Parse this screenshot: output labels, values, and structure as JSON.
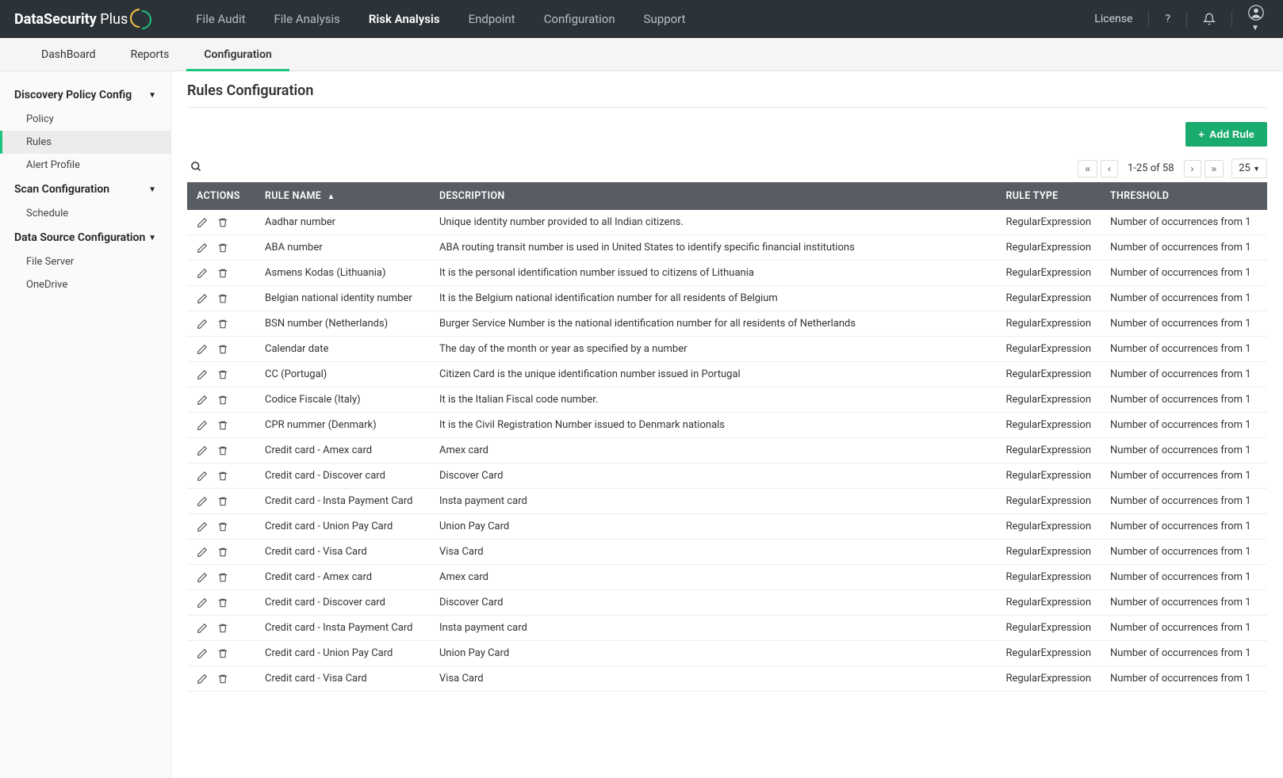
{
  "brand": {
    "prefix": "DataSecurity",
    "suffix": " Plus"
  },
  "topnav": {
    "items": [
      {
        "label": "File Audit"
      },
      {
        "label": "File Analysis"
      },
      {
        "label": "Risk Analysis",
        "active": true
      },
      {
        "label": "Endpoint"
      },
      {
        "label": "Configuration"
      },
      {
        "label": "Support"
      }
    ],
    "license": "License",
    "help": "?"
  },
  "subnav": {
    "items": [
      {
        "label": "DashBoard"
      },
      {
        "label": "Reports"
      },
      {
        "label": "Configuration",
        "active": true
      }
    ]
  },
  "sidebar": {
    "sections": [
      {
        "title": "Discovery Policy Config",
        "items": [
          {
            "label": "Policy"
          },
          {
            "label": "Rules",
            "active": true
          },
          {
            "label": "Alert Profile"
          }
        ]
      },
      {
        "title": "Scan Configuration",
        "items": [
          {
            "label": "Schedule"
          }
        ]
      },
      {
        "title": "Data Source Configuration",
        "items": [
          {
            "label": "File Server"
          },
          {
            "label": "OneDrive"
          }
        ]
      }
    ]
  },
  "page": {
    "title": "Rules Configuration",
    "add_button": "Add Rule"
  },
  "pagination": {
    "range_label": "1-25 of 58",
    "page_size": "25"
  },
  "table": {
    "columns": {
      "actions": "ACTIONS",
      "rule_name": "RULE NAME",
      "description": "DESCRIPTION",
      "rule_type": "RULE TYPE",
      "threshold": "THRESHOLD"
    },
    "rows": [
      {
        "name": "Aadhar number",
        "description": "Unique identity number provided to all Indian citizens.",
        "type": "RegularExpression",
        "threshold": "Number of occurrences from 1"
      },
      {
        "name": "ABA number",
        "description": "ABA routing transit number is used in United States to identify specific financial institutions",
        "type": "RegularExpression",
        "threshold": "Number of occurrences from 1"
      },
      {
        "name": "Asmens Kodas (Lithuania)",
        "description": "It is the personal identification number issued to citizens of Lithuania",
        "type": "RegularExpression",
        "threshold": "Number of occurrences from 1"
      },
      {
        "name": "Belgian national identity number",
        "description": "It is the Belgium national identification number for all residents of Belgium",
        "type": "RegularExpression",
        "threshold": "Number of occurrences from 1"
      },
      {
        "name": "BSN number (Netherlands)",
        "description": "Burger Service Number is the national identification number for all residents of Netherlands",
        "type": "RegularExpression",
        "threshold": "Number of occurrences from 1"
      },
      {
        "name": "Calendar date",
        "description": "The day of the month or year as specified by a number",
        "type": "RegularExpression",
        "threshold": "Number of occurrences from 1"
      },
      {
        "name": "CC (Portugal)",
        "description": "Citizen Card is the unique identification number issued in Portugal",
        "type": "RegularExpression",
        "threshold": "Number of occurrences from 1"
      },
      {
        "name": "Codice Fiscale (Italy)",
        "description": "It is the Italian Fiscal code number.",
        "type": "RegularExpression",
        "threshold": "Number of occurrences from 1"
      },
      {
        "name": "CPR nummer (Denmark)",
        "description": "It is the Civil Registration Number issued to Denmark nationals",
        "type": "RegularExpression",
        "threshold": "Number of occurrences from 1"
      },
      {
        "name": "Credit card - Amex card",
        "description": "Amex card",
        "type": "RegularExpression",
        "threshold": "Number of occurrences from 1"
      },
      {
        "name": "Credit card - Discover card",
        "description": "Discover Card",
        "type": "RegularExpression",
        "threshold": "Number of occurrences from 1"
      },
      {
        "name": "Credit card - Insta Payment Card",
        "description": "Insta payment card",
        "type": "RegularExpression",
        "threshold": "Number of occurrences from 1"
      },
      {
        "name": "Credit card - Union Pay Card",
        "description": "Union Pay Card",
        "type": "RegularExpression",
        "threshold": "Number of occurrences from 1"
      },
      {
        "name": "Credit card - Visa Card",
        "description": "Visa Card",
        "type": "RegularExpression",
        "threshold": "Number of occurrences from 1"
      },
      {
        "name": "Credit card - Amex card",
        "description": "Amex card",
        "type": "RegularExpression",
        "threshold": "Number of occurrences from 1"
      },
      {
        "name": "Credit card - Discover card",
        "description": "Discover Card",
        "type": "RegularExpression",
        "threshold": "Number of occurrences from 1"
      },
      {
        "name": "Credit card - Insta Payment Card",
        "description": "Insta payment card",
        "type": "RegularExpression",
        "threshold": "Number of occurrences from 1"
      },
      {
        "name": "Credit card - Union Pay Card",
        "description": "Union Pay Card",
        "type": "RegularExpression",
        "threshold": "Number of occurrences from 1"
      },
      {
        "name": "Credit card - Visa Card",
        "description": "Visa Card",
        "type": "RegularExpression",
        "threshold": "Number of occurrences from 1"
      }
    ]
  },
  "colors": {
    "navbar_bg": "#2c3338",
    "accent_green": "#1bc47d",
    "button_green": "#1aab6e",
    "thead_bg": "#575d63",
    "sidebar_bg": "#fafafa"
  }
}
